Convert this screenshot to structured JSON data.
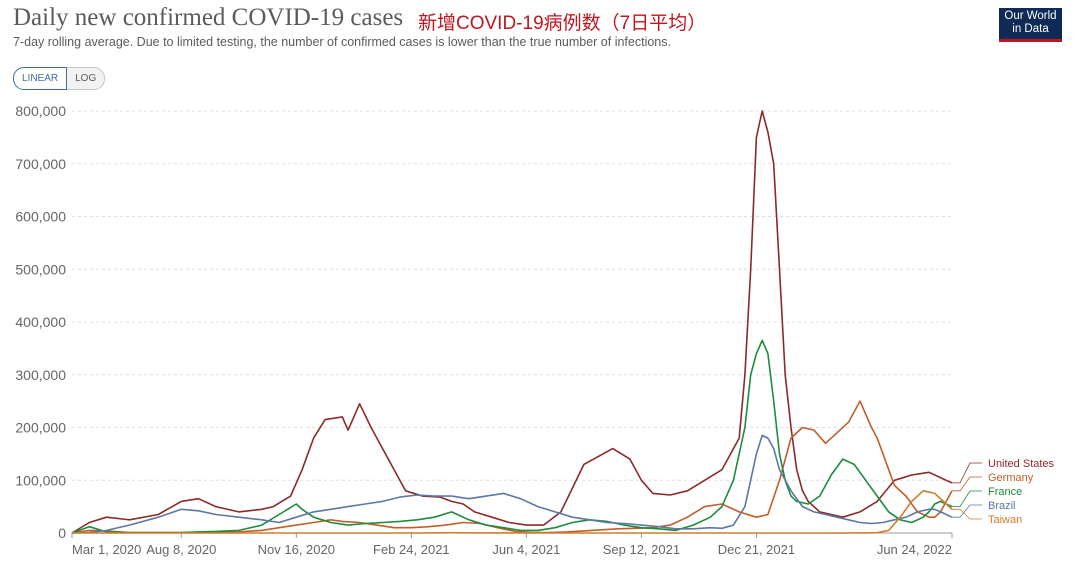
{
  "header": {
    "title": "Daily new confirmed COVID-19 cases",
    "cn_title": "新增COVID-19病例数（7日平均）",
    "subtitle": "7-day rolling average. Due to limited testing, the number of confirmed cases is lower than the true number of infections.",
    "logo_line1": "Our World",
    "logo_line2": "in Data"
  },
  "controls": {
    "linear_label": "LINEAR",
    "log_label": "LOG",
    "active": "LINEAR"
  },
  "chart_data": {
    "type": "line",
    "title": "Daily new confirmed COVID-19 cases",
    "ylim": [
      0,
      800000
    ],
    "yticks": [
      0,
      100000,
      200000,
      300000,
      400000,
      500000,
      600000,
      700000,
      800000
    ],
    "ytick_labels": [
      "0",
      "100,000",
      "200,000",
      "300,000",
      "400,000",
      "500,000",
      "600,000",
      "700,000",
      "800,000"
    ],
    "xtick_labels": [
      "Mar 1, 2020",
      "Aug 8, 2020",
      "Nov 16, 2020",
      "Feb 24, 2021",
      "Jun 4, 2021",
      "Sep 12, 2021",
      "Dec 21, 2021",
      "Jun 24, 2022"
    ],
    "xtick_positions": [
      0,
      19,
      39,
      59,
      79,
      99,
      119,
      153
    ],
    "x_unit": "weeks since Mar 1, 2020",
    "grid": true,
    "legend_placement": "right end labels",
    "series": [
      {
        "name": "United States",
        "color": "#8c2a2a",
        "x": [
          0,
          3,
          6,
          10,
          15,
          19,
          22,
          25,
          29,
          33,
          35,
          38,
          40,
          42,
          44,
          47,
          48,
          50,
          52,
          54,
          56,
          58,
          61,
          64,
          66,
          68,
          70,
          73,
          76,
          79,
          82,
          85,
          89,
          94,
          97,
          99,
          101,
          104,
          107,
          110,
          113,
          116,
          117,
          118,
          119,
          120,
          121,
          122,
          123,
          124,
          125,
          126,
          127,
          128,
          129,
          130,
          132,
          134,
          137,
          140,
          143,
          146,
          149,
          151,
          152,
          153
        ],
        "y": [
          0,
          20000,
          30000,
          25000,
          35000,
          60000,
          65000,
          50000,
          40000,
          45000,
          50000,
          70000,
          120000,
          180000,
          215000,
          220000,
          195000,
          245000,
          200000,
          160000,
          120000,
          80000,
          70000,
          68000,
          60000,
          55000,
          40000,
          30000,
          20000,
          15000,
          15000,
          40000,
          130000,
          160000,
          140000,
          100000,
          75000,
          72000,
          80000,
          100000,
          120000,
          180000,
          300000,
          500000,
          750000,
          800000,
          760000,
          700000,
          500000,
          300000,
          200000,
          120000,
          80000,
          60000,
          50000,
          40000,
          35000,
          30000,
          40000,
          60000,
          100000,
          110000,
          115000,
          105000,
          100000,
          95000
        ]
      },
      {
        "name": "Germany",
        "color": "#c15e2c",
        "x": [
          0,
          3,
          6,
          10,
          15,
          19,
          22,
          25,
          29,
          33,
          36,
          39,
          42,
          45,
          47,
          50,
          53,
          56,
          59,
          62,
          65,
          68,
          71,
          74,
          77,
          80,
          83,
          86,
          89,
          92,
          95,
          98,
          101,
          104,
          107,
          110,
          113,
          116,
          119,
          121,
          123,
          125,
          127,
          129,
          131,
          133,
          135,
          137,
          139,
          140,
          141,
          142,
          143,
          145,
          147,
          149,
          150,
          151,
          152,
          153
        ],
        "y": [
          0,
          5000,
          4000,
          1000,
          1000,
          1000,
          1500,
          1500,
          2000,
          5000,
          10000,
          15000,
          20000,
          25000,
          22000,
          20000,
          15000,
          10000,
          10000,
          12000,
          15000,
          20000,
          18000,
          10000,
          3000,
          1000,
          1000,
          2000,
          4000,
          6000,
          8000,
          9000,
          10000,
          15000,
          30000,
          50000,
          55000,
          40000,
          30000,
          35000,
          100000,
          180000,
          200000,
          195000,
          170000,
          190000,
          210000,
          250000,
          200000,
          180000,
          150000,
          120000,
          90000,
          70000,
          40000,
          30000,
          30000,
          40000,
          60000,
          80000
        ]
      },
      {
        "name": "France",
        "color": "#1d8c3c",
        "x": [
          0,
          3,
          6,
          10,
          15,
          19,
          22,
          25,
          29,
          33,
          36,
          39,
          40,
          42,
          45,
          48,
          51,
          54,
          57,
          60,
          63,
          66,
          69,
          72,
          75,
          78,
          81,
          84,
          87,
          90,
          93,
          96,
          99,
          102,
          105,
          108,
          111,
          113,
          115,
          117,
          118,
          119,
          120,
          121,
          122,
          123,
          124,
          125,
          126,
          128,
          130,
          132,
          134,
          136,
          138,
          140,
          142,
          144,
          146,
          148,
          149,
          150,
          151,
          152,
          153
        ],
        "y": [
          0,
          12000,
          2000,
          500,
          500,
          1000,
          2000,
          3000,
          5000,
          15000,
          35000,
          55000,
          45000,
          30000,
          20000,
          15000,
          18000,
          20000,
          22000,
          25000,
          30000,
          40000,
          25000,
          15000,
          10000,
          5000,
          5000,
          10000,
          20000,
          25000,
          22000,
          15000,
          10000,
          8000,
          5000,
          15000,
          30000,
          50000,
          100000,
          200000,
          300000,
          340000,
          365000,
          340000,
          250000,
          150000,
          100000,
          70000,
          60000,
          55000,
          70000,
          110000,
          140000,
          130000,
          100000,
          70000,
          40000,
          25000,
          20000,
          30000,
          40000,
          55000,
          60000,
          55000,
          50000
        ]
      },
      {
        "name": "Brazil",
        "color": "#5e77a3",
        "x": [
          0,
          3,
          6,
          10,
          15,
          19,
          22,
          25,
          29,
          33,
          36,
          39,
          42,
          45,
          48,
          51,
          54,
          57,
          60,
          63,
          66,
          69,
          72,
          75,
          78,
          81,
          84,
          87,
          90,
          93,
          96,
          99,
          102,
          105,
          108,
          111,
          113,
          115,
          117,
          119,
          120,
          121,
          122,
          123,
          125,
          127,
          129,
          131,
          133,
          135,
          137,
          139,
          141,
          143,
          145,
          147,
          149,
          150,
          151,
          152,
          153
        ],
        "y": [
          0,
          1000,
          5000,
          15000,
          30000,
          45000,
          42000,
          35000,
          30000,
          25000,
          20000,
          30000,
          40000,
          45000,
          50000,
          55000,
          60000,
          68000,
          72000,
          70000,
          70000,
          65000,
          70000,
          75000,
          65000,
          50000,
          40000,
          30000,
          25000,
          20000,
          18000,
          15000,
          12000,
          8000,
          8000,
          10000,
          9000,
          15000,
          50000,
          150000,
          185000,
          180000,
          160000,
          120000,
          80000,
          50000,
          40000,
          35000,
          30000,
          25000,
          20000,
          18000,
          20000,
          25000,
          30000,
          40000,
          45000,
          45000,
          40000,
          35000,
          30000
        ]
      },
      {
        "name": "Taiwan",
        "color": "#d17d2c",
        "x": [
          0,
          10,
          20,
          30,
          40,
          50,
          60,
          62,
          66,
          70,
          80,
          90,
          100,
          110,
          120,
          130,
          138,
          140,
          142,
          144,
          146,
          148,
          150,
          151,
          152,
          153
        ],
        "y": [
          0,
          0,
          0,
          0,
          0,
          0,
          0,
          200,
          500,
          200,
          0,
          0,
          0,
          0,
          0,
          0,
          100,
          500,
          5000,
          30000,
          60000,
          80000,
          75000,
          65000,
          55000,
          45000
        ]
      }
    ]
  }
}
